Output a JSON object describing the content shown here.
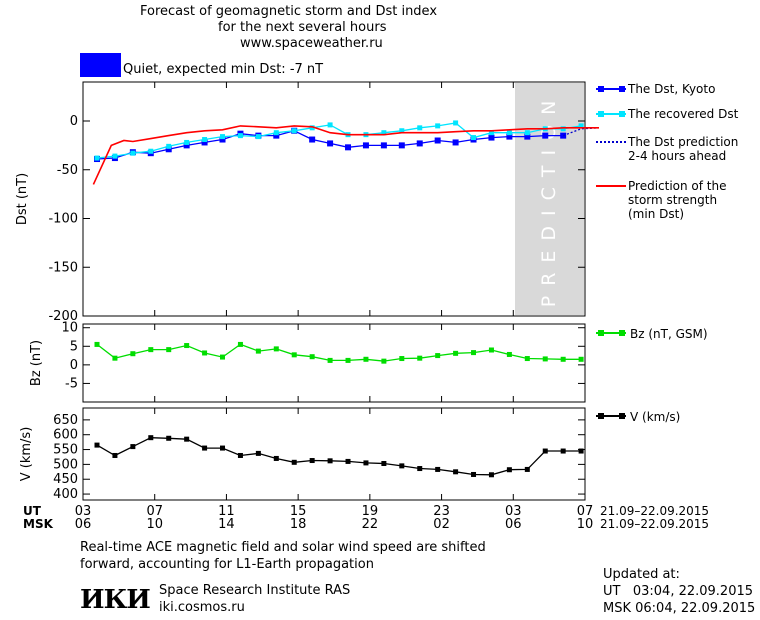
{
  "header": {
    "title_lines": [
      "Forecast of geomagnetic storm and Dst index",
      "for the next several hours",
      "www.spaceweather.ru"
    ],
    "status_text": "Quiet, expected min Dst: -7 nT",
    "status_color": "#0000ff"
  },
  "chart_data": [
    {
      "type": "line",
      "ylabel": "Dst (nT)",
      "ylim": [
        -200,
        40
      ],
      "yticks": [
        0,
        -50,
        -100,
        -150,
        -200
      ],
      "x_range": [
        0,
        28
      ],
      "prediction_region": [
        26,
        28
      ],
      "prediction_label": "PREDICTION",
      "series": [
        {
          "name": "The Dst, Kyoto",
          "color": "#0000ff",
          "x": [
            0,
            1,
            2,
            3,
            4,
            5,
            6,
            7,
            8,
            9,
            10,
            11,
            12,
            13,
            14,
            15,
            16,
            17,
            18,
            19,
            20,
            21,
            22,
            23,
            24,
            25,
            26
          ],
          "values": [
            -39,
            -38,
            -32,
            -33,
            -29,
            -25,
            -22,
            -19,
            -13,
            -15,
            -15,
            -10,
            -19,
            -23,
            -27,
            -25,
            -25,
            -25,
            -23,
            -20,
            -22,
            -19,
            -17,
            -16,
            -16,
            -15,
            -15
          ]
        },
        {
          "name": "The recovered Dst",
          "color": "#00e5ff",
          "x": [
            0,
            1,
            2,
            3,
            4,
            5,
            6,
            7,
            8,
            9,
            10,
            11,
            12,
            13,
            14,
            15,
            16,
            17,
            18,
            19,
            20,
            21,
            22,
            23,
            24,
            25,
            26,
            27
          ],
          "values": [
            -38,
            -36,
            -33,
            -31,
            -26,
            -22,
            -19,
            -16,
            -15,
            -16,
            -12,
            -10,
            -7,
            -4,
            -14,
            -14,
            -12,
            -10,
            -7,
            -5,
            -2,
            -17,
            -12,
            -12,
            -12,
            -8,
            -8,
            -5
          ]
        },
        {
          "name": "The Dst prediction 2-4 hours ahead",
          "color": "#0000cc",
          "x": [
            26,
            27,
            28
          ],
          "values": [
            -15,
            -8,
            -7
          ]
        },
        {
          "name": "Prediction of the storm strength (min Dst)",
          "color": "#ff0000",
          "x": [
            -0.2,
            0.8,
            1.5,
            2,
            3,
            4,
            5,
            6,
            7,
            8,
            9,
            10,
            11,
            12,
            13,
            14,
            15,
            16,
            17,
            18,
            19,
            20,
            21,
            22,
            23,
            24,
            25,
            26,
            27,
            28
          ],
          "values": [
            -65,
            -25,
            -20,
            -21,
            -18,
            -15,
            -12,
            -10,
            -9,
            -5,
            -6,
            -7,
            -5,
            -6,
            -12,
            -14,
            -14,
            -14,
            -12,
            -12,
            -12,
            -11,
            -10,
            -10,
            -9,
            -8,
            -8,
            -7,
            -7,
            -7
          ]
        }
      ],
      "legend": [
        {
          "label_lines": [
            "The Dst, Kyoto"
          ]
        },
        {
          "label_lines": [
            "The recovered Dst"
          ]
        },
        {
          "label_lines": [
            "The Dst prediction",
            "2-4 hours ahead"
          ]
        },
        {
          "label_lines": [
            "Prediction of the",
            "storm strength",
            "(min Dst)"
          ]
        }
      ]
    },
    {
      "type": "line",
      "ylabel": "Bz (nT)",
      "ylim": [
        -10,
        11
      ],
      "yticks": [
        10,
        5,
        0,
        -5
      ],
      "series": [
        {
          "name": "Bz (nT, GSM)",
          "color": "#00dd00",
          "x": [
            0,
            1,
            2,
            3,
            4,
            5,
            6,
            7,
            8,
            9,
            10,
            11,
            12,
            13,
            14,
            15,
            16,
            17,
            18,
            19,
            20,
            21,
            22,
            23,
            24,
            25,
            26,
            27
          ],
          "values": [
            5.5,
            1.8,
            3,
            4.1,
            4.1,
            5.2,
            3.2,
            2.1,
            5.5,
            3.7,
            4.3,
            2.7,
            2.2,
            1.2,
            1.2,
            1.5,
            1.0,
            1.7,
            1.8,
            2.5,
            3.1,
            3.3,
            4.0,
            2.8,
            1.7,
            1.6,
            1.5,
            1.5
          ]
        }
      ]
    },
    {
      "type": "line",
      "ylabel": "V (km/s)",
      "ylim": [
        380,
        690
      ],
      "yticks": [
        650,
        600,
        550,
        500,
        450,
        400
      ],
      "series": [
        {
          "name": "V (km/s)",
          "color": "#000000",
          "x": [
            0,
            1,
            2,
            3,
            4,
            5,
            6,
            7,
            8,
            9,
            10,
            11,
            12,
            13,
            14,
            15,
            16,
            17,
            18,
            19,
            20,
            21,
            22,
            23,
            24,
            25,
            26,
            27
          ],
          "values": [
            565,
            530,
            560,
            590,
            588,
            585,
            555,
            555,
            530,
            537,
            520,
            507,
            513,
            512,
            510,
            505,
            503,
            495,
            486,
            483,
            475,
            466,
            465,
            482,
            483,
            545,
            545,
            545
          ]
        }
      ]
    }
  ],
  "time_axis": {
    "ut_label": "UT",
    "msk_label": "MSK",
    "ut_ticks": [
      "03",
      "07",
      "11",
      "15",
      "19",
      "23",
      "03",
      "07"
    ],
    "msk_ticks": [
      "06",
      "10",
      "14",
      "18",
      "22",
      "02",
      "06",
      "10"
    ],
    "date_range": "21.09–22.09.2015"
  },
  "footer": {
    "note_lines": [
      "Real-time ACE magnetic field and solar wind speed are shifted",
      "forward, accounting for L1-Earth propagation"
    ],
    "logo_text": "ИКИ",
    "institute": "Space Research Institute RAS",
    "website": "iki.cosmos.ru",
    "updated_label": "Updated at:",
    "updated_ut": "UT   03:04, 22.09.2015",
    "updated_msk": "MSK 06:04, 22.09.2015"
  }
}
